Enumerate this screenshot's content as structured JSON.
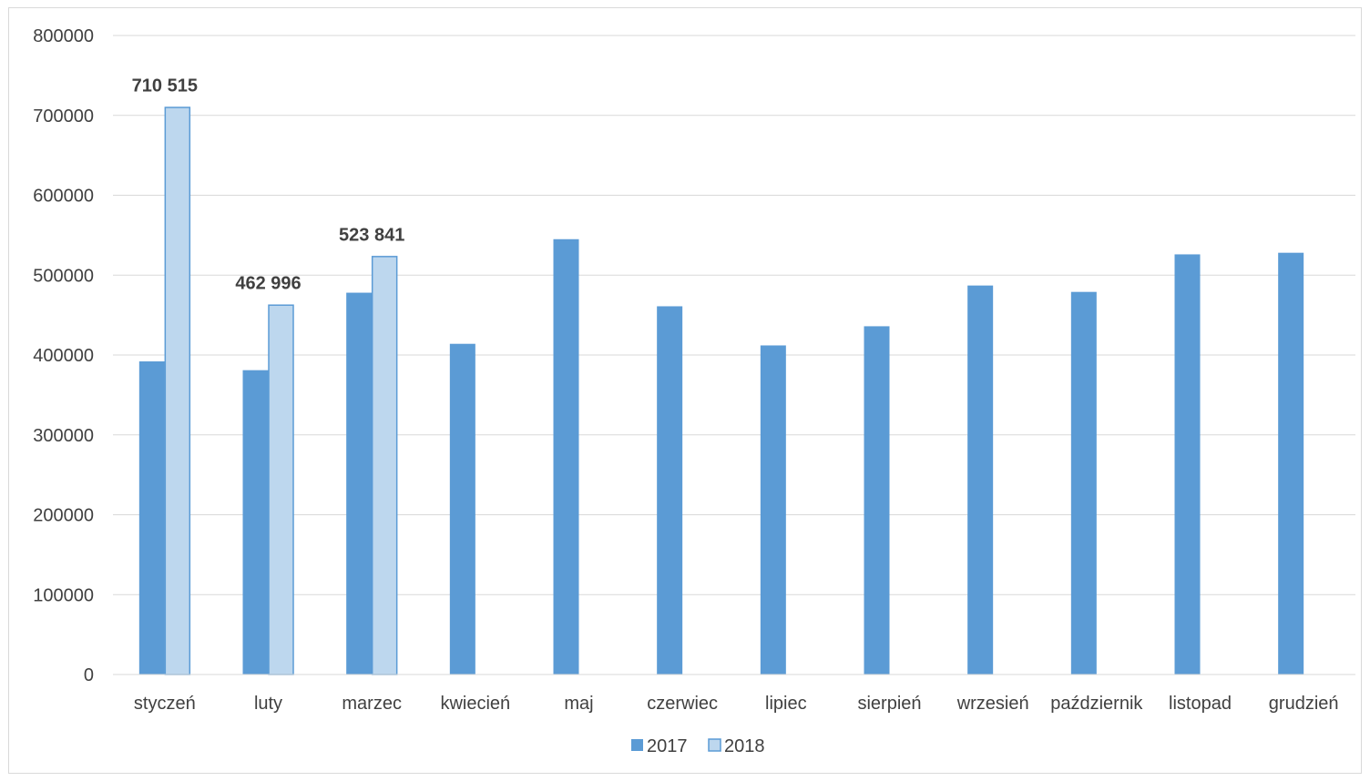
{
  "chart_data": {
    "type": "bar",
    "title": "",
    "xlabel": "",
    "ylabel": "",
    "ylim": [
      0,
      800000
    ],
    "yticks": [
      0,
      100000,
      200000,
      300000,
      400000,
      500000,
      600000,
      700000,
      800000
    ],
    "ytick_labels": [
      "0",
      "100000",
      "200000",
      "300000",
      "400000",
      "500000",
      "600000",
      "700000",
      "800000"
    ],
    "grid": true,
    "legend_position": "bottom",
    "categories": [
      "styczeń",
      "luty",
      "marzec",
      "kwiecień",
      "maj",
      "czerwiec",
      "lipiec",
      "sierpień",
      "wrzesień",
      "październik",
      "listopad",
      "grudzień"
    ],
    "series": [
      {
        "name": "2017",
        "color": "#5b9bd5",
        "values": [
          392000,
          381000,
          478000,
          414000,
          545000,
          461000,
          412000,
          436000,
          487000,
          479000,
          526000,
          528000
        ]
      },
      {
        "name": "2018",
        "color": "#bdd7ee",
        "border_color": "#5b9bd5",
        "values": [
          710515,
          462996,
          523841,
          null,
          null,
          null,
          null,
          null,
          null,
          null,
          null,
          null
        ],
        "data_labels": [
          "710 515",
          "462 996",
          "523 841",
          null,
          null,
          null,
          null,
          null,
          null,
          null,
          null,
          null
        ]
      }
    ]
  }
}
